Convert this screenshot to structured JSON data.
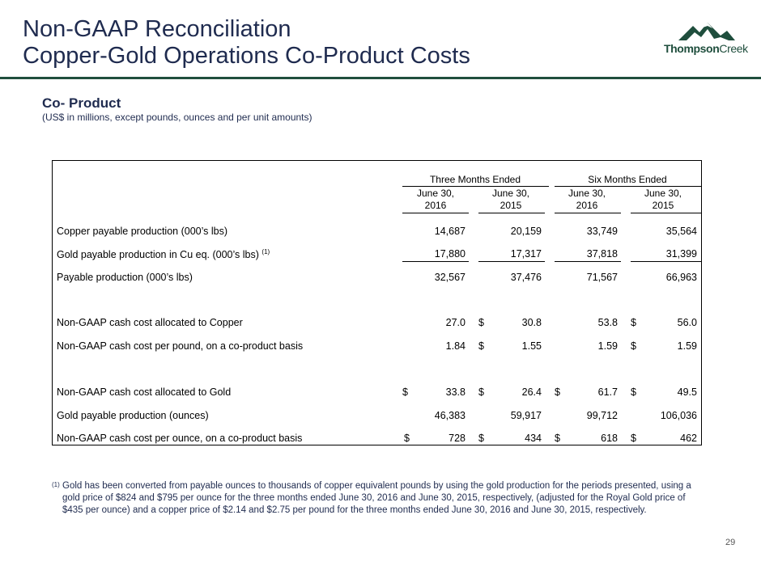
{
  "slide": {
    "title_line1": "Non-GAAP Reconciliation",
    "title_line2": "Copper-Gold Operations Co-Product Costs",
    "logo_text_bold": "Thompson",
    "logo_text_light": "Creek",
    "section_title": "Co- Product",
    "section_subtitle": "(US$ in millions, except pounds, ounces and per unit amounts)",
    "page_number": "29"
  },
  "table": {
    "group_headers": [
      "Three Months Ended",
      "Six Months Ended"
    ],
    "column_headers": [
      {
        "line1": "June 30,",
        "line2": "2016"
      },
      {
        "line1": "June 30,",
        "line2": "2015"
      },
      {
        "line1": "June 30,",
        "line2": "2016"
      },
      {
        "line1": "June 30,",
        "line2": "2015"
      }
    ],
    "rows": [
      {
        "label": "Copper payable production (000’s lbs)",
        "sup": "",
        "values": [
          "14,687",
          "20,159",
          "33,749",
          "35,564"
        ],
        "currency": [
          "",
          "",
          "",
          ""
        ]
      },
      {
        "label": "Gold payable production in Cu eq. (000’s lbs)",
        "sup": "(1)",
        "values": [
          "17,880",
          "17,317",
          "37,818",
          "31,399"
        ],
        "currency": [
          "",
          "",
          "",
          ""
        ]
      },
      {
        "label": "Payable production (000’s lbs)",
        "sup": "",
        "values": [
          "32,567",
          "37,476",
          "71,567",
          "66,963"
        ],
        "currency": [
          "",
          "",
          "",
          ""
        ]
      },
      {
        "label": "Non-GAAP cash cost allocated to Copper",
        "sup": "",
        "values": [
          "27.0",
          "30.8",
          "53.8",
          "56.0"
        ],
        "currency": [
          "",
          "$",
          "",
          "$"
        ]
      },
      {
        "label": "Non-GAAP cash cost per pound, on a co-product basis",
        "sup": "",
        "values": [
          "1.84",
          "1.55",
          "1.59",
          "1.59"
        ],
        "currency": [
          "",
          "$",
          "",
          "$"
        ]
      },
      {
        "label": "Non-GAAP cash cost allocated to Gold",
        "sup": "",
        "values": [
          "33.8",
          "26.4",
          "61.7",
          "49.5"
        ],
        "currency": [
          "$",
          "$",
          "$",
          "$"
        ]
      },
      {
        "label": "Gold payable production (ounces)",
        "sup": "",
        "values": [
          "46,383",
          "59,917",
          "99,712",
          "106,036"
        ],
        "currency": [
          "",
          "",
          "",
          ""
        ]
      },
      {
        "label": "Non-GAAP cash cost per ounce, on a co-product basis",
        "sup": "",
        "values": [
          "728",
          "434",
          "618",
          "462"
        ],
        "currency": [
          "$",
          "$",
          "$",
          "$"
        ]
      }
    ]
  },
  "footnote": {
    "marker": "(1)",
    "text": "Gold has been converted from payable ounces to thousands of copper equivalent pounds by using the gold production for the periods presented, using a gold price of $824 and $795 per ounce for the three months ended June 30, 2016 and June 30, 2015, respectively, (adjusted for the Royal Gold price of $435 per ounce) and a copper price of $2.14 and $2.75 per pound for the three months ended June 30, 2016 and June 30, 2015, respectively."
  }
}
